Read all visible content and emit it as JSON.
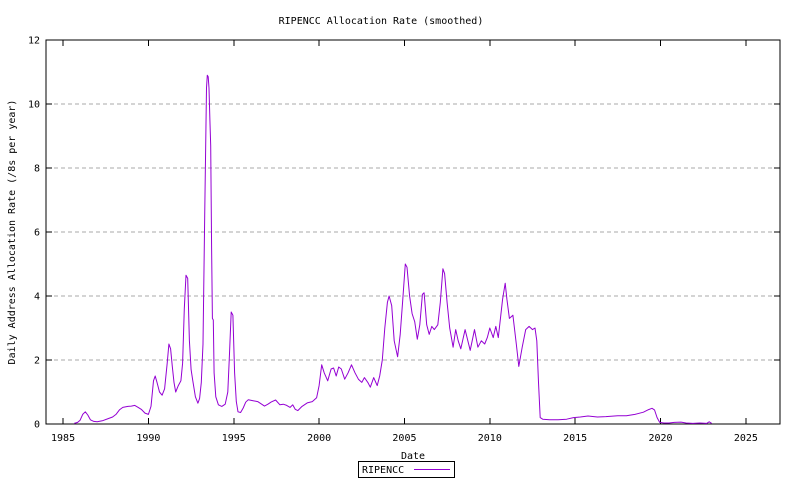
{
  "chart_data": {
    "type": "line",
    "title": "RIPENCC Allocation Rate (smoothed)",
    "xlabel": "Date",
    "ylabel": "Daily Address Allocation Rate (/8s per year)",
    "xlim": [
      1984,
      2027
    ],
    "ylim": [
      0,
      12
    ],
    "x_ticks": [
      1985,
      1990,
      1995,
      2000,
      2005,
      2010,
      2015,
      2020,
      2025
    ],
    "y_ticks": [
      0,
      2,
      4,
      6,
      8,
      10,
      12
    ],
    "grid": "horizontal dashed gridlines at y=2,4,6,8,10; ticks mirrored on all four borders",
    "legend": {
      "position": "below x-axis label, centered",
      "entries": [
        "RIPENCC"
      ]
    },
    "colors": {
      "line": "#9400d3",
      "grid": "#a8a8a8",
      "border": "#000000",
      "text": "#000000",
      "background": "#ffffff"
    },
    "series": [
      {
        "name": "RIPENCC",
        "color": "#9400d3",
        "points": [
          [
            1985.65,
            0.02
          ],
          [
            1985.85,
            0.05
          ],
          [
            1986.0,
            0.12
          ],
          [
            1986.15,
            0.3
          ],
          [
            1986.3,
            0.38
          ],
          [
            1986.45,
            0.28
          ],
          [
            1986.6,
            0.13
          ],
          [
            1986.8,
            0.08
          ],
          [
            1987.0,
            0.07
          ],
          [
            1987.3,
            0.1
          ],
          [
            1987.6,
            0.16
          ],
          [
            1987.9,
            0.22
          ],
          [
            1988.1,
            0.3
          ],
          [
            1988.3,
            0.44
          ],
          [
            1988.5,
            0.52
          ],
          [
            1988.8,
            0.55
          ],
          [
            1989.0,
            0.56
          ],
          [
            1989.2,
            0.58
          ],
          [
            1989.4,
            0.52
          ],
          [
            1989.6,
            0.45
          ],
          [
            1989.8,
            0.34
          ],
          [
            1990.0,
            0.3
          ],
          [
            1990.15,
            0.55
          ],
          [
            1990.3,
            1.35
          ],
          [
            1990.4,
            1.5
          ],
          [
            1990.5,
            1.3
          ],
          [
            1990.65,
            1.0
          ],
          [
            1990.8,
            0.9
          ],
          [
            1990.95,
            1.1
          ],
          [
            1991.1,
            1.9
          ],
          [
            1991.2,
            2.5
          ],
          [
            1991.3,
            2.35
          ],
          [
            1991.4,
            1.8
          ],
          [
            1991.5,
            1.3
          ],
          [
            1991.6,
            1.0
          ],
          [
            1991.75,
            1.2
          ],
          [
            1991.9,
            1.35
          ],
          [
            1992.0,
            1.9
          ],
          [
            1992.1,
            3.6
          ],
          [
            1992.2,
            4.65
          ],
          [
            1992.3,
            4.55
          ],
          [
            1992.4,
            2.6
          ],
          [
            1992.5,
            1.7
          ],
          [
            1992.6,
            1.35
          ],
          [
            1992.75,
            0.85
          ],
          [
            1992.9,
            0.65
          ],
          [
            1993.0,
            0.8
          ],
          [
            1993.1,
            1.3
          ],
          [
            1993.2,
            2.5
          ],
          [
            1993.3,
            6.5
          ],
          [
            1993.4,
            10.5
          ],
          [
            1993.45,
            10.9
          ],
          [
            1993.5,
            10.85
          ],
          [
            1993.55,
            10.5
          ],
          [
            1993.6,
            9.5
          ],
          [
            1993.65,
            8.7
          ],
          [
            1993.7,
            5.5
          ],
          [
            1993.75,
            3.3
          ],
          [
            1993.8,
            3.25
          ],
          [
            1993.85,
            1.6
          ],
          [
            1993.95,
            0.85
          ],
          [
            1994.1,
            0.6
          ],
          [
            1994.3,
            0.55
          ],
          [
            1994.5,
            0.62
          ],
          [
            1994.65,
            1.0
          ],
          [
            1994.75,
            2.2
          ],
          [
            1994.85,
            3.5
          ],
          [
            1994.95,
            3.4
          ],
          [
            1995.05,
            1.6
          ],
          [
            1995.15,
            0.7
          ],
          [
            1995.25,
            0.38
          ],
          [
            1995.4,
            0.36
          ],
          [
            1995.55,
            0.5
          ],
          [
            1995.7,
            0.68
          ],
          [
            1995.85,
            0.76
          ],
          [
            1996.1,
            0.73
          ],
          [
            1996.4,
            0.7
          ],
          [
            1996.6,
            0.63
          ],
          [
            1996.8,
            0.56
          ],
          [
            1997.0,
            0.62
          ],
          [
            1997.2,
            0.69
          ],
          [
            1997.45,
            0.75
          ],
          [
            1997.7,
            0.6
          ],
          [
            1997.9,
            0.62
          ],
          [
            1998.1,
            0.58
          ],
          [
            1998.3,
            0.52
          ],
          [
            1998.45,
            0.6
          ],
          [
            1998.6,
            0.46
          ],
          [
            1998.75,
            0.42
          ],
          [
            1999.0,
            0.55
          ],
          [
            1999.3,
            0.66
          ],
          [
            1999.6,
            0.7
          ],
          [
            1999.85,
            0.82
          ],
          [
            2000.0,
            1.2
          ],
          [
            2000.15,
            1.85
          ],
          [
            2000.3,
            1.6
          ],
          [
            2000.5,
            1.35
          ],
          [
            2000.7,
            1.72
          ],
          [
            2000.85,
            1.75
          ],
          [
            2001.0,
            1.5
          ],
          [
            2001.15,
            1.78
          ],
          [
            2001.3,
            1.72
          ],
          [
            2001.5,
            1.4
          ],
          [
            2001.7,
            1.6
          ],
          [
            2001.9,
            1.85
          ],
          [
            2002.1,
            1.6
          ],
          [
            2002.3,
            1.4
          ],
          [
            2002.5,
            1.3
          ],
          [
            2002.65,
            1.45
          ],
          [
            2002.85,
            1.3
          ],
          [
            2003.0,
            1.15
          ],
          [
            2003.2,
            1.45
          ],
          [
            2003.4,
            1.2
          ],
          [
            2003.55,
            1.5
          ],
          [
            2003.7,
            2.0
          ],
          [
            2003.85,
            3.0
          ],
          [
            2004.0,
            3.8
          ],
          [
            2004.1,
            4.0
          ],
          [
            2004.25,
            3.7
          ],
          [
            2004.4,
            2.6
          ],
          [
            2004.6,
            2.1
          ],
          [
            2004.75,
            2.8
          ],
          [
            2004.9,
            3.9
          ],
          [
            2005.05,
            5.0
          ],
          [
            2005.15,
            4.9
          ],
          [
            2005.3,
            4.0
          ],
          [
            2005.45,
            3.45
          ],
          [
            2005.6,
            3.2
          ],
          [
            2005.75,
            2.65
          ],
          [
            2005.9,
            3.1
          ],
          [
            2006.05,
            4.05
          ],
          [
            2006.15,
            4.1
          ],
          [
            2006.3,
            3.1
          ],
          [
            2006.45,
            2.8
          ],
          [
            2006.6,
            3.05
          ],
          [
            2006.75,
            2.95
          ],
          [
            2006.95,
            3.1
          ],
          [
            2007.1,
            3.8
          ],
          [
            2007.25,
            4.85
          ],
          [
            2007.35,
            4.7
          ],
          [
            2007.5,
            3.8
          ],
          [
            2007.65,
            3.0
          ],
          [
            2007.85,
            2.4
          ],
          [
            2008.0,
            2.95
          ],
          [
            2008.15,
            2.6
          ],
          [
            2008.3,
            2.35
          ],
          [
            2008.55,
            2.95
          ],
          [
            2008.85,
            2.3
          ],
          [
            2009.1,
            2.95
          ],
          [
            2009.3,
            2.4
          ],
          [
            2009.5,
            2.6
          ],
          [
            2009.7,
            2.5
          ],
          [
            2009.85,
            2.7
          ],
          [
            2010.0,
            3.0
          ],
          [
            2010.2,
            2.7
          ],
          [
            2010.35,
            3.05
          ],
          [
            2010.5,
            2.7
          ],
          [
            2010.75,
            3.9
          ],
          [
            2010.9,
            4.4
          ],
          [
            2011.0,
            3.9
          ],
          [
            2011.15,
            3.3
          ],
          [
            2011.35,
            3.4
          ],
          [
            2011.55,
            2.5
          ],
          [
            2011.7,
            1.8
          ],
          [
            2011.9,
            2.4
          ],
          [
            2012.1,
            2.95
          ],
          [
            2012.3,
            3.05
          ],
          [
            2012.5,
            2.95
          ],
          [
            2012.65,
            3.0
          ],
          [
            2012.75,
            2.6
          ],
          [
            2012.85,
            1.3
          ],
          [
            2012.95,
            0.2
          ],
          [
            2013.1,
            0.15
          ],
          [
            2013.5,
            0.13
          ],
          [
            2014.0,
            0.13
          ],
          [
            2014.5,
            0.15
          ],
          [
            2014.9,
            0.2
          ],
          [
            2015.3,
            0.22
          ],
          [
            2015.75,
            0.25
          ],
          [
            2016.3,
            0.22
          ],
          [
            2016.8,
            0.23
          ],
          [
            2017.5,
            0.26
          ],
          [
            2018.0,
            0.26
          ],
          [
            2018.5,
            0.3
          ],
          [
            2019.0,
            0.37
          ],
          [
            2019.3,
            0.45
          ],
          [
            2019.5,
            0.49
          ],
          [
            2019.65,
            0.44
          ],
          [
            2019.8,
            0.2
          ],
          [
            2019.95,
            0.05
          ],
          [
            2020.2,
            0.03
          ],
          [
            2020.5,
            0.03
          ],
          [
            2020.8,
            0.05
          ],
          [
            2021.2,
            0.06
          ],
          [
            2021.5,
            0.03
          ],
          [
            2021.9,
            0.02
          ],
          [
            2022.3,
            0.03
          ],
          [
            2022.7,
            0.02
          ],
          [
            2022.85,
            0.07
          ],
          [
            2023.0,
            0.02
          ]
        ]
      }
    ]
  }
}
